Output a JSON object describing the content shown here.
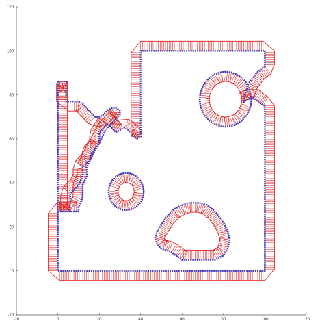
{
  "chart_data": {
    "type": "line",
    "title": "",
    "xlabel": "",
    "ylabel": "",
    "xlim": [
      -20,
      120
    ],
    "ylim": [
      -20,
      120
    ],
    "xticks": [
      -20,
      0,
      20,
      40,
      60,
      80,
      100,
      120
    ],
    "yticks": [
      -20,
      0,
      20,
      40,
      60,
      80,
      100,
      120
    ],
    "xtick_labels": [
      "-20",
      "0",
      "20",
      "40",
      "60",
      "80",
      "100",
      "120"
    ],
    "ytick_labels": [
      "-20",
      "0",
      "20",
      "40",
      "60",
      "80",
      "100",
      "120"
    ],
    "grid": false,
    "legend": "none",
    "colors": {
      "boundary": "#3b3bbf",
      "offset": "#e01e1e",
      "axes": "#555555"
    },
    "series": [
      {
        "role": "outer-boundary",
        "x": [
          0,
          2,
          4,
          6,
          8,
          10,
          10,
          12,
          12,
          14,
          14,
          14,
          16,
          16,
          20,
          20,
          22,
          24,
          24,
          26,
          28,
          30,
          32,
          34,
          36,
          38,
          38,
          40,
          40,
          40,
          100,
          100,
          96,
          92,
          90,
          90,
          94,
          98,
          100,
          100,
          0,
          0,
          6,
          6,
          10,
          12,
          12,
          16,
          18,
          20,
          22,
          24,
          26,
          28,
          30,
          30,
          28,
          26,
          24,
          22,
          20,
          18,
          16,
          14,
          12,
          10,
          8,
          6,
          4,
          4,
          2,
          2,
          0,
          0
        ],
        "y": [
          27,
          27,
          27,
          27,
          27,
          27,
          29,
          33,
          39,
          43,
          47,
          47,
          51,
          53,
          58,
          62,
          65,
          67,
          67,
          65,
          63,
          64,
          65,
          64,
          62,
          60,
          60,
          61,
          62,
          100,
          100,
          93,
          90,
          85,
          79,
          77,
          79,
          76,
          75,
          0,
          0,
          27,
          27,
          35,
          39,
          43,
          47,
          51,
          55,
          58,
          62,
          65,
          67,
          69,
          71,
          73,
          74,
          74,
          73,
          71,
          70,
          70,
          72,
          74,
          76,
          77,
          77,
          77,
          77,
          86,
          86,
          86,
          86,
          27
        ]
      },
      {
        "role": "hole-circle-large",
        "center": [
          81,
          78
        ],
        "radius": 12.5
      },
      {
        "role": "hole-circle-small",
        "center": [
          33,
          36
        ],
        "radius": 8.5
      },
      {
        "role": "hole-blob",
        "x": [
          48,
          52,
          56,
          60,
          64,
          68,
          72,
          76,
          80,
          82,
          83,
          82,
          80,
          76,
          72,
          68,
          64,
          60,
          57,
          54,
          50,
          48,
          47,
          48
        ],
        "y": [
          18,
          24,
          28,
          30,
          31,
          31,
          30,
          27,
          22,
          18,
          14,
          10,
          7,
          5,
          5,
          5,
          5,
          5,
          7,
          9,
          10,
          12,
          15,
          18
        ]
      }
    ]
  }
}
